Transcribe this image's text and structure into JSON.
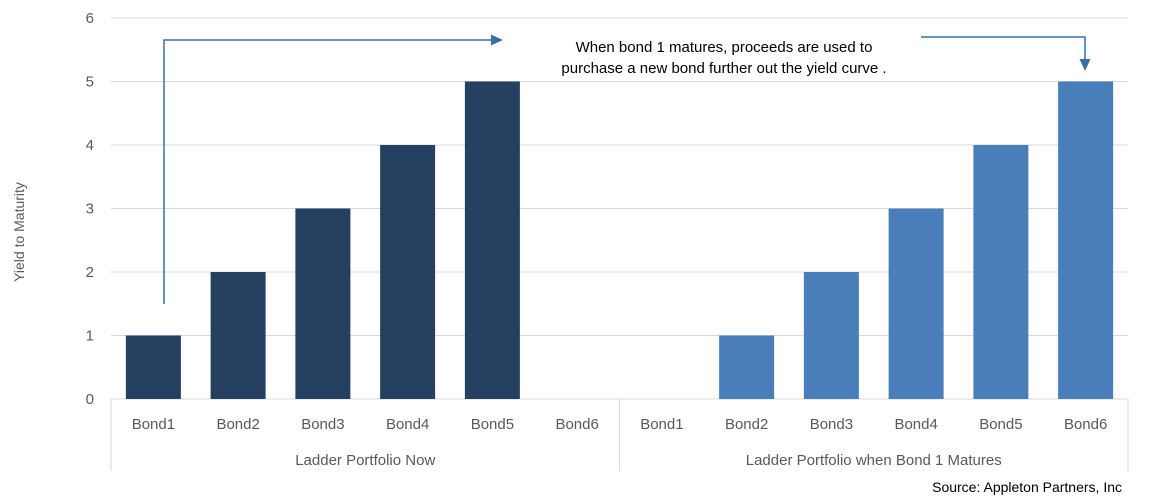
{
  "chart_data": {
    "type": "bar",
    "ylabel": "Yield to Maturity",
    "ylim": [
      0,
      6
    ],
    "yticks": [
      0,
      1,
      2,
      3,
      4,
      5,
      6
    ],
    "grid": true,
    "groups": [
      {
        "label": "Ladder Portfolio Now",
        "categories": [
          "Bond1",
          "Bond2",
          "Bond3",
          "Bond4",
          "Bond5",
          "Bond6"
        ],
        "values": [
          1,
          2,
          3,
          4,
          5,
          0
        ],
        "color": "#264061"
      },
      {
        "label": "Ladder Portfolio when Bond 1 Matures",
        "categories": [
          "Bond1",
          "Bond2",
          "Bond3",
          "Bond4",
          "Bond5",
          "Bond6"
        ],
        "values": [
          0,
          1,
          2,
          3,
          4,
          5
        ],
        "color": "#4a7ebb"
      }
    ],
    "annotation": {
      "line1": "When bond 1 matures, proceeds are used to",
      "line2": "purchase a new bond further out the yield curve ."
    },
    "source": "Source: Appleton Partners, Inc",
    "colors": {
      "grid": "#d9d9d9",
      "axis_text": "#595959",
      "arrow": "#3a6fa5"
    }
  }
}
